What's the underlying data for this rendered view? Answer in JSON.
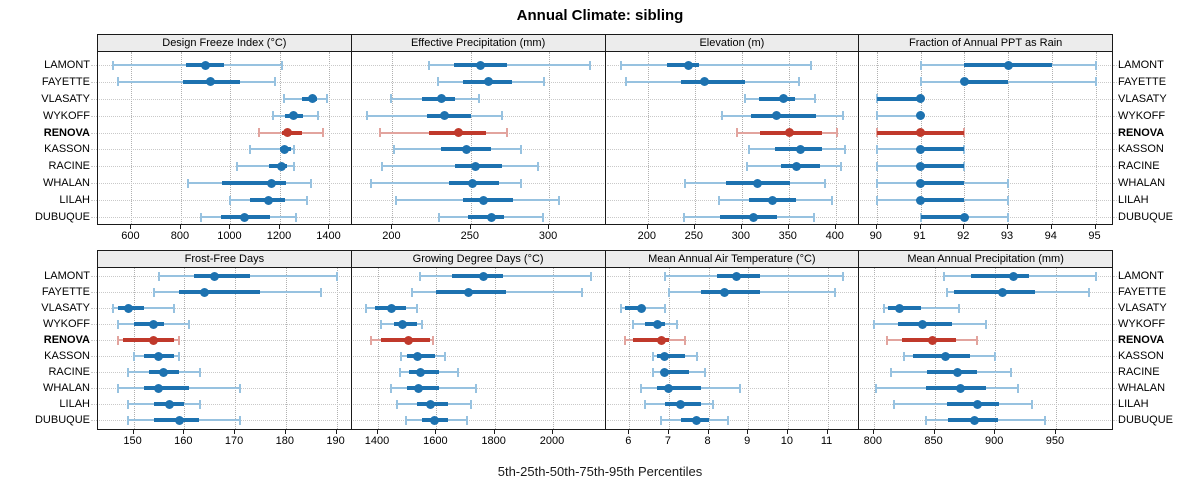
{
  "title": "Annual Climate: sibling",
  "caption": "5th-25th-50th-75th-95th Percentiles",
  "colors": {
    "blue": "#1d72b0",
    "blue_light": "#97c2e0",
    "red": "#c0392b",
    "red_light": "#e2a49e",
    "strip_bg": "#ececec",
    "border": "#1a1a1a",
    "grid_v": "#b0b0b0",
    "grid_h": "#c9c9c9"
  },
  "chart_data": {
    "type": "scatter",
    "subtype": "percentile-interval-dotplot",
    "title": "Annual Climate: sibling",
    "caption": "5th-25th-50th-75th-95th Percentiles",
    "percentiles": [
      5,
      25,
      50,
      75,
      95
    ],
    "legend_position": "none",
    "grid": "dotted",
    "stations": [
      "LAMONT",
      "FAYETTE",
      "VLASATY",
      "WYKOFF",
      "RENOVA",
      "KASSON",
      "RACINE",
      "WHALAN",
      "LILAH",
      "DUBUQUE"
    ],
    "highlight_station": "RENOVA",
    "panels": [
      {
        "label": "Design Freeze Index (°C)",
        "row": 1,
        "xlim": [
          465,
          1490
        ],
        "ticks": [
          600,
          800,
          1000,
          1200,
          1400
        ],
        "values": [
          [
            525,
            820,
            900,
            975,
            1210
          ],
          [
            545,
            810,
            920,
            1040,
            1180
          ],
          [
            1215,
            1290,
            1330,
            1350,
            1390
          ],
          [
            1170,
            1220,
            1255,
            1295,
            1355
          ],
          [
            1115,
            1210,
            1230,
            1290,
            1375
          ],
          [
            1080,
            1200,
            1220,
            1245,
            1255
          ],
          [
            1025,
            1155,
            1205,
            1230,
            1255
          ],
          [
            830,
            965,
            1165,
            1225,
            1325
          ],
          [
            1000,
            1080,
            1155,
            1220,
            1310
          ],
          [
            880,
            960,
            1055,
            1160,
            1265
          ]
        ]
      },
      {
        "label": "Effective Precipitation (mm)",
        "row": 1,
        "xlim": [
          174,
          336
        ],
        "ticks": [
          200,
          250,
          300
        ],
        "values": [
          [
            223,
            239,
            256,
            273,
            326
          ],
          [
            229,
            245,
            261,
            276,
            297
          ],
          [
            199,
            219,
            231,
            240,
            255
          ],
          [
            184,
            222,
            233,
            250,
            270
          ],
          [
            192,
            223,
            242,
            260,
            273
          ],
          [
            201,
            231,
            247,
            263,
            282
          ],
          [
            193,
            240,
            253,
            270,
            293
          ],
          [
            186,
            236,
            251,
            268,
            282
          ],
          [
            202,
            245,
            258,
            277,
            306
          ],
          [
            230,
            248,
            263,
            271,
            296
          ]
        ]
      },
      {
        "label": "Elevation (m)",
        "row": 1,
        "xlim": [
          155,
          425
        ],
        "ticks": [
          200,
          250,
          300,
          350,
          400
        ],
        "values": [
          [
            172,
            220,
            243,
            255,
            374
          ],
          [
            177,
            235,
            260,
            303,
            361
          ],
          [
            303,
            318,
            344,
            357,
            378
          ],
          [
            279,
            310,
            337,
            379,
            408
          ],
          [
            295,
            319,
            351,
            385,
            401
          ],
          [
            308,
            335,
            362,
            385,
            410
          ],
          [
            306,
            342,
            358,
            383,
            406
          ],
          [
            240,
            283,
            317,
            351,
            389
          ],
          [
            276,
            308,
            333,
            358,
            396
          ],
          [
            239,
            277,
            312,
            338,
            377
          ]
        ]
      },
      {
        "label": "Fraction of Annual PPT as Rain",
        "row": 1,
        "xlim": [
          89.6,
          95.4
        ],
        "ticks": [
          90,
          91,
          92,
          93,
          94,
          95
        ],
        "values": [
          [
            91,
            92,
            93,
            94,
            95
          ],
          [
            91,
            92,
            92,
            93,
            95
          ],
          [
            90,
            90,
            91,
            91,
            91
          ],
          [
            90,
            91,
            91,
            91,
            91
          ],
          [
            90,
            90,
            91,
            92,
            92
          ],
          [
            90,
            91,
            91,
            92,
            92
          ],
          [
            90,
            91,
            91,
            92,
            92
          ],
          [
            90,
            91,
            91,
            92,
            93
          ],
          [
            90,
            91,
            91,
            92,
            93
          ],
          [
            91,
            91,
            92,
            92,
            93
          ]
        ]
      },
      {
        "label": "Frost-Free Days",
        "row": 2,
        "xlim": [
          143,
          193
        ],
        "ticks": [
          150,
          160,
          170,
          180,
          190
        ],
        "values": [
          [
            155,
            162,
            166,
            173,
            190
          ],
          [
            154,
            159,
            164,
            175,
            187
          ],
          [
            146,
            147,
            149,
            152,
            158
          ],
          [
            147,
            150,
            154,
            156,
            161
          ],
          [
            147,
            148,
            154,
            158,
            159
          ],
          [
            150,
            152,
            155,
            158,
            159
          ],
          [
            149,
            153,
            156,
            159,
            163
          ],
          [
            147,
            152,
            155,
            161,
            171
          ],
          [
            149,
            154,
            157,
            160,
            163
          ],
          [
            149,
            154,
            159,
            163,
            171
          ]
        ]
      },
      {
        "label": "Growing Degree Days (°C)",
        "row": 2,
        "xlim": [
          1310,
          2180
        ],
        "ticks": [
          1400,
          1600,
          1800,
          2000
        ],
        "values": [
          [
            1545,
            1655,
            1760,
            1830,
            2130
          ],
          [
            1515,
            1600,
            1710,
            1840,
            2100
          ],
          [
            1360,
            1390,
            1445,
            1495,
            1535
          ],
          [
            1410,
            1455,
            1485,
            1535,
            1550
          ],
          [
            1375,
            1410,
            1505,
            1580,
            1590
          ],
          [
            1480,
            1500,
            1535,
            1595,
            1630
          ],
          [
            1475,
            1505,
            1545,
            1610,
            1675
          ],
          [
            1445,
            1500,
            1540,
            1610,
            1735
          ],
          [
            1465,
            1535,
            1580,
            1640,
            1720
          ],
          [
            1495,
            1550,
            1595,
            1640,
            1705
          ]
        ]
      },
      {
        "label": "Mean Annual Air Temperature (°C)",
        "row": 2,
        "xlim": [
          5.4,
          11.8
        ],
        "ticks": [
          6,
          7,
          8,
          9,
          10,
          11
        ],
        "values": [
          [
            6.9,
            8.2,
            8.7,
            9.3,
            11.4
          ],
          [
            7.0,
            7.8,
            8.4,
            9.3,
            11.2
          ],
          [
            5.8,
            5.9,
            6.3,
            6.4,
            6.9
          ],
          [
            6.1,
            6.4,
            6.7,
            6.9,
            7.2
          ],
          [
            5.9,
            6.1,
            6.8,
            7.0,
            7.4
          ],
          [
            6.6,
            6.7,
            6.9,
            7.4,
            7.7
          ],
          [
            6.6,
            6.8,
            6.9,
            7.5,
            7.9
          ],
          [
            6.3,
            6.7,
            7.0,
            7.8,
            8.8
          ],
          [
            6.4,
            6.9,
            7.3,
            7.8,
            8.1
          ],
          [
            6.8,
            7.3,
            7.7,
            8.0,
            8.5
          ]
        ]
      },
      {
        "label": "Mean Annual Precipitation (mm)",
        "row": 2,
        "xlim": [
          788,
          997
        ],
        "ticks": [
          800,
          850,
          900,
          950
        ],
        "values": [
          [
            858,
            880,
            915,
            928,
            983
          ],
          [
            860,
            866,
            906,
            933,
            977
          ],
          [
            808,
            812,
            821,
            839,
            870
          ],
          [
            800,
            820,
            840,
            864,
            892
          ],
          [
            811,
            823,
            848,
            868,
            885
          ],
          [
            825,
            832,
            859,
            879,
            900
          ],
          [
            814,
            844,
            869,
            885,
            913
          ],
          [
            802,
            843,
            871,
            892,
            919
          ],
          [
            817,
            860,
            885,
            903,
            930
          ],
          [
            843,
            861,
            883,
            902,
            941
          ]
        ]
      }
    ]
  }
}
